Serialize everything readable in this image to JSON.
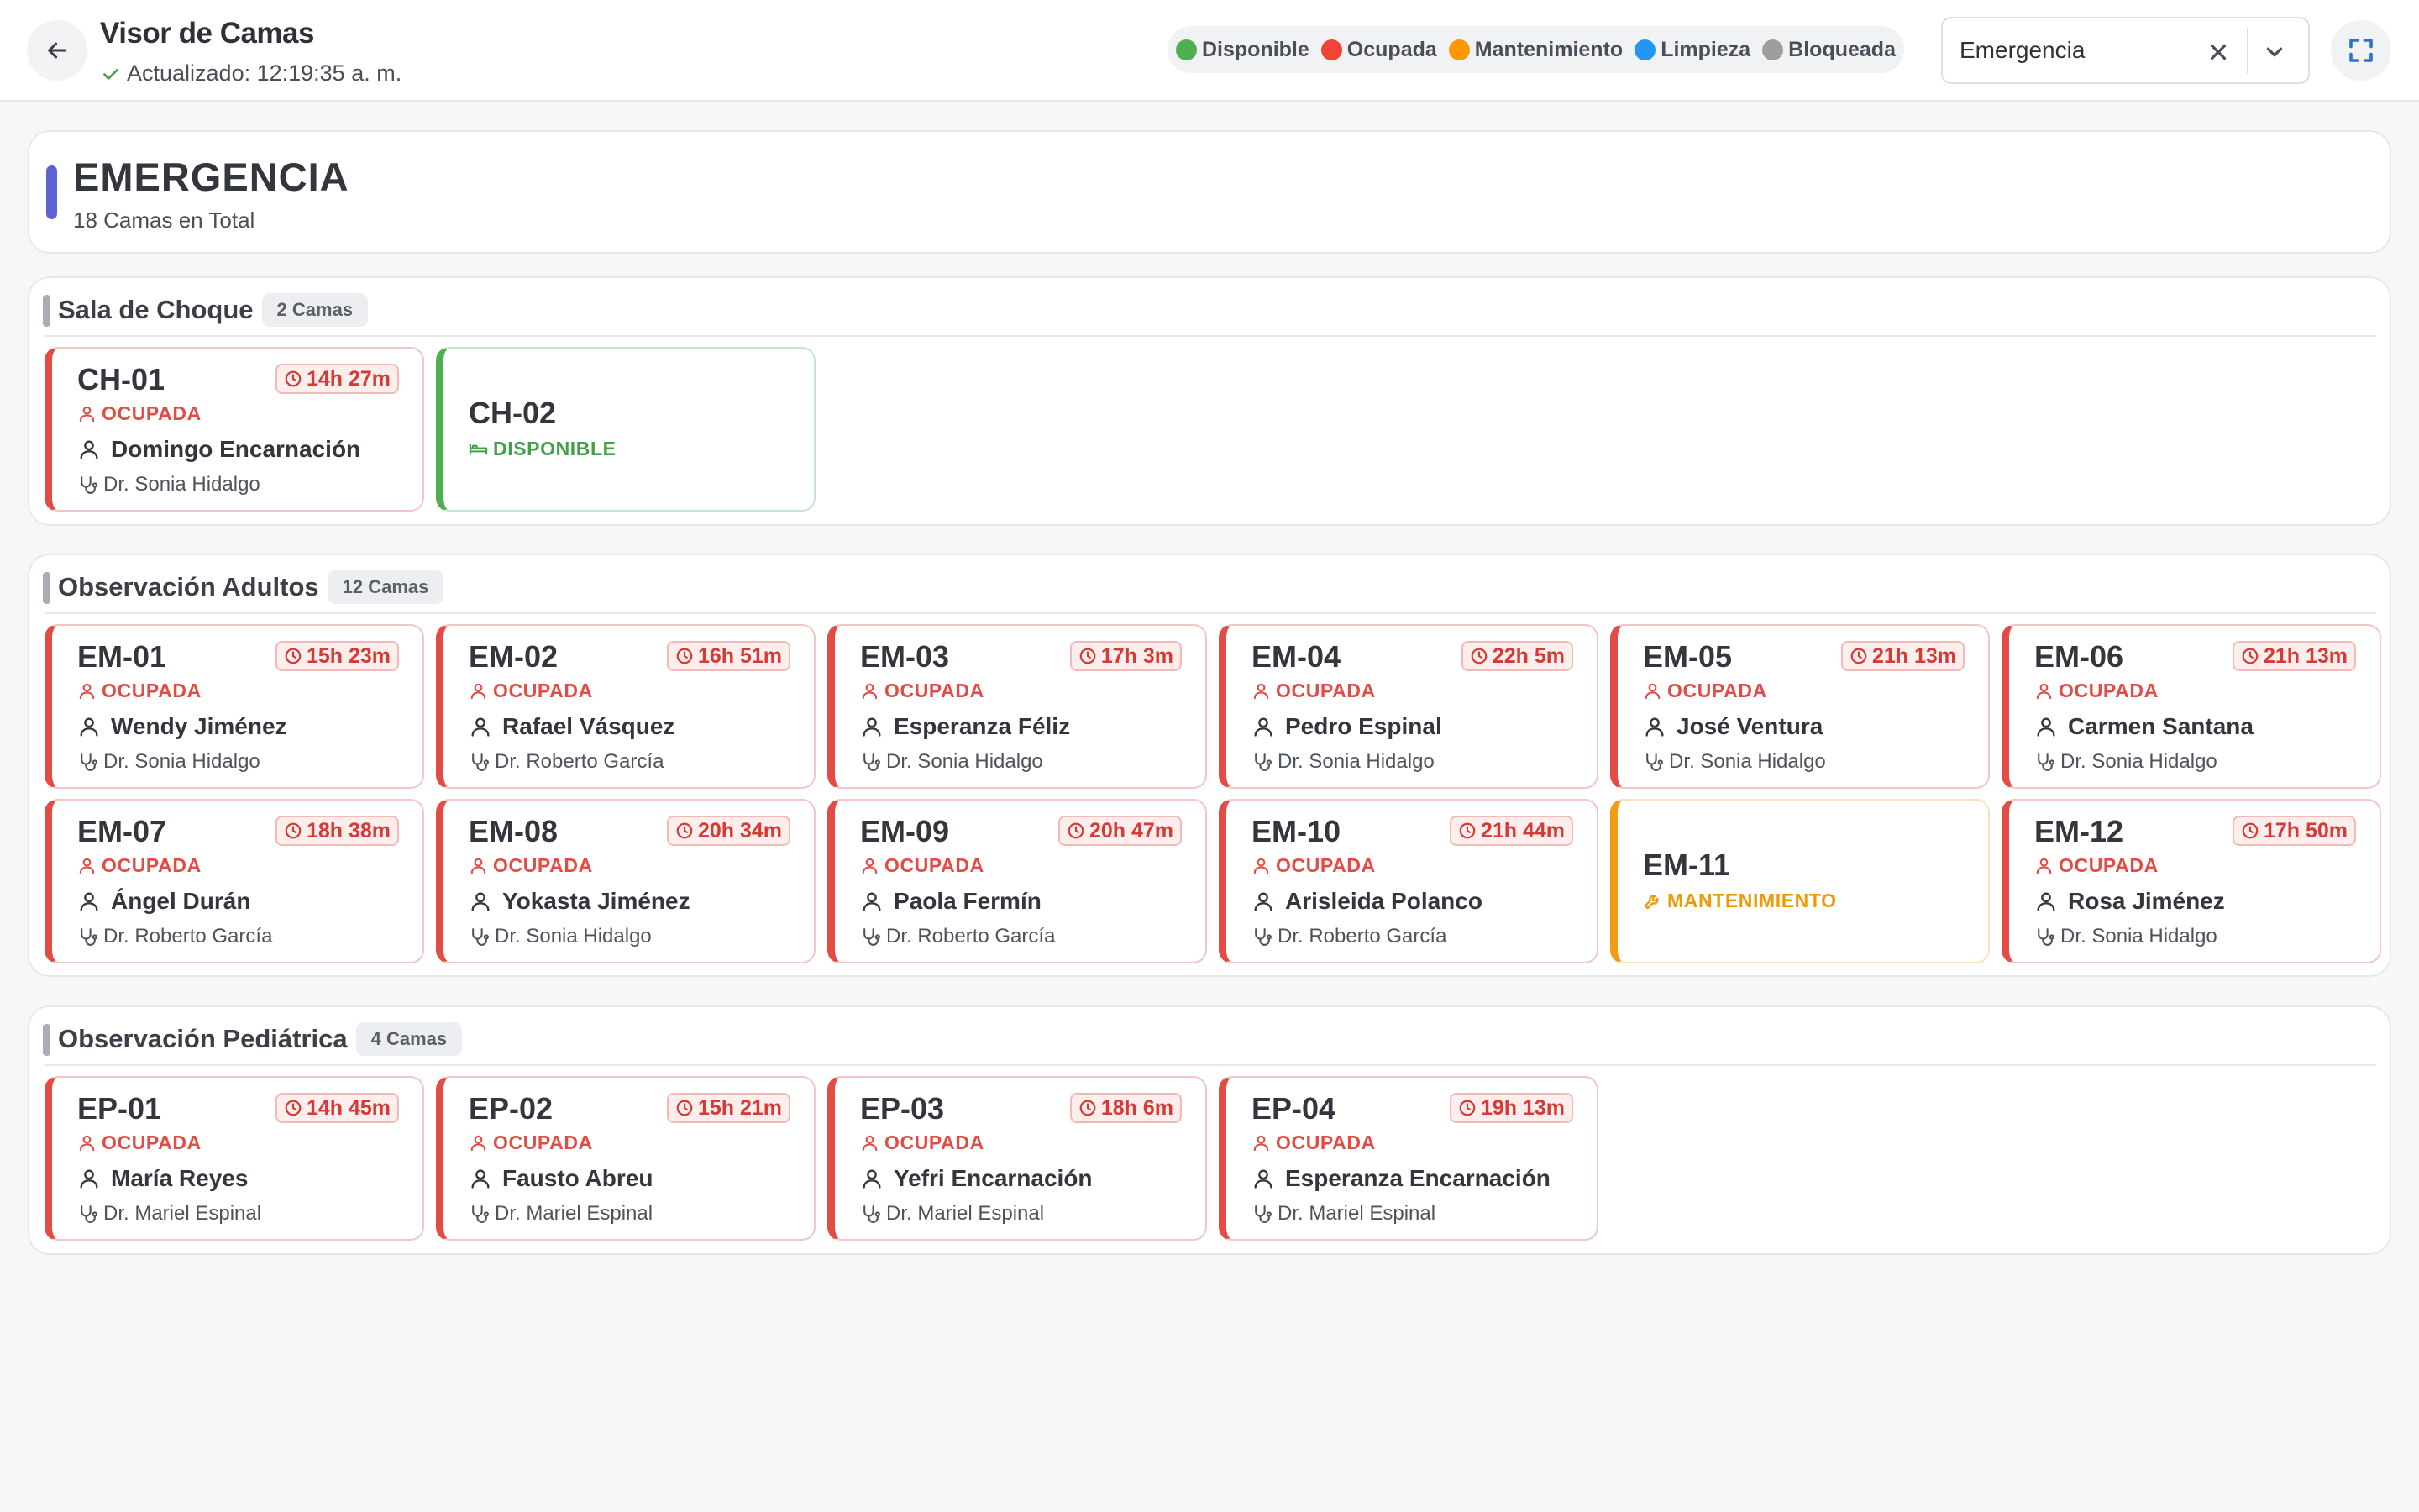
{
  "header": {
    "title": "Visor de Camas",
    "updated": "Actualizado: 12:19:35 a. m."
  },
  "legend": [
    {
      "label": "Disponible",
      "color": "#4caf50"
    },
    {
      "label": "Ocupada",
      "color": "#f44336"
    },
    {
      "label": "Mantenimiento",
      "color": "#ff9800"
    },
    {
      "label": "Limpieza",
      "color": "#2196f3"
    },
    {
      "label": "Bloqueada",
      "color": "#9e9e9e"
    }
  ],
  "department_select": {
    "value": "Emergencia"
  },
  "department": {
    "name": "EMERGENCIA",
    "total": "18 Camas en Total",
    "accent_color": "#5b63d3"
  },
  "sections": [
    {
      "title": "Sala de Choque",
      "count": "2 Camas",
      "beds": [
        {
          "code": "CH-01",
          "state": "occupied",
          "status": "OCUPADA",
          "time": "14h 27m",
          "patient": "Domingo Encarnación",
          "doctor": "Dr. Sonia Hidalgo"
        },
        {
          "code": "CH-02",
          "state": "free",
          "status": "DISPONIBLE"
        }
      ]
    },
    {
      "title": "Observación Adultos",
      "count": "12 Camas",
      "beds": [
        {
          "code": "EM-01",
          "state": "occupied",
          "status": "OCUPADA",
          "time": "15h 23m",
          "patient": "Wendy Jiménez",
          "doctor": "Dr. Sonia Hidalgo"
        },
        {
          "code": "EM-02",
          "state": "occupied",
          "status": "OCUPADA",
          "time": "16h 51m",
          "patient": "Rafael Vásquez",
          "doctor": "Dr. Roberto García"
        },
        {
          "code": "EM-03",
          "state": "occupied",
          "status": "OCUPADA",
          "time": "17h 3m",
          "patient": "Esperanza Féliz",
          "doctor": "Dr. Sonia Hidalgo"
        },
        {
          "code": "EM-04",
          "state": "occupied",
          "status": "OCUPADA",
          "time": "22h 5m",
          "patient": "Pedro Espinal",
          "doctor": "Dr. Sonia Hidalgo"
        },
        {
          "code": "EM-05",
          "state": "occupied",
          "status": "OCUPADA",
          "time": "21h 13m",
          "patient": "José Ventura",
          "doctor": "Dr. Sonia Hidalgo"
        },
        {
          "code": "EM-06",
          "state": "occupied",
          "status": "OCUPADA",
          "time": "21h 13m",
          "patient": "Carmen Santana",
          "doctor": "Dr. Sonia Hidalgo"
        },
        {
          "code": "EM-07",
          "state": "occupied",
          "status": "OCUPADA",
          "time": "18h 38m",
          "patient": "Ángel Durán",
          "doctor": "Dr. Roberto García"
        },
        {
          "code": "EM-08",
          "state": "occupied",
          "status": "OCUPADA",
          "time": "20h 34m",
          "patient": "Yokasta Jiménez",
          "doctor": "Dr. Sonia Hidalgo"
        },
        {
          "code": "EM-09",
          "state": "occupied",
          "status": "OCUPADA",
          "time": "20h 47m",
          "patient": "Paola Fermín",
          "doctor": "Dr. Roberto García"
        },
        {
          "code": "EM-10",
          "state": "occupied",
          "status": "OCUPADA",
          "time": "21h 44m",
          "patient": "Arisleida Polanco",
          "doctor": "Dr. Roberto García"
        },
        {
          "code": "EM-11",
          "state": "maint",
          "status": "MANTENIMIENTO"
        },
        {
          "code": "EM-12",
          "state": "occupied",
          "status": "OCUPADA",
          "time": "17h 50m",
          "patient": "Rosa Jiménez",
          "doctor": "Dr. Sonia Hidalgo"
        }
      ]
    },
    {
      "title": "Observación Pediátrica",
      "count": "4 Camas",
      "beds": [
        {
          "code": "EP-01",
          "state": "occupied",
          "status": "OCUPADA",
          "time": "14h 45m",
          "patient": "María Reyes",
          "doctor": "Dr. Mariel Espinal"
        },
        {
          "code": "EP-02",
          "state": "occupied",
          "status": "OCUPADA",
          "time": "15h 21m",
          "patient": "Fausto Abreu",
          "doctor": "Dr. Mariel Espinal"
        },
        {
          "code": "EP-03",
          "state": "occupied",
          "status": "OCUPADA",
          "time": "18h 6m",
          "patient": "Yefri Encarnación",
          "doctor": "Dr. Mariel Espinal"
        },
        {
          "code": "EP-04",
          "state": "occupied",
          "status": "OCUPADA",
          "time": "19h 13m",
          "patient": "Esperanza Encarnación",
          "doctor": "Dr. Mariel Espinal"
        }
      ]
    }
  ]
}
